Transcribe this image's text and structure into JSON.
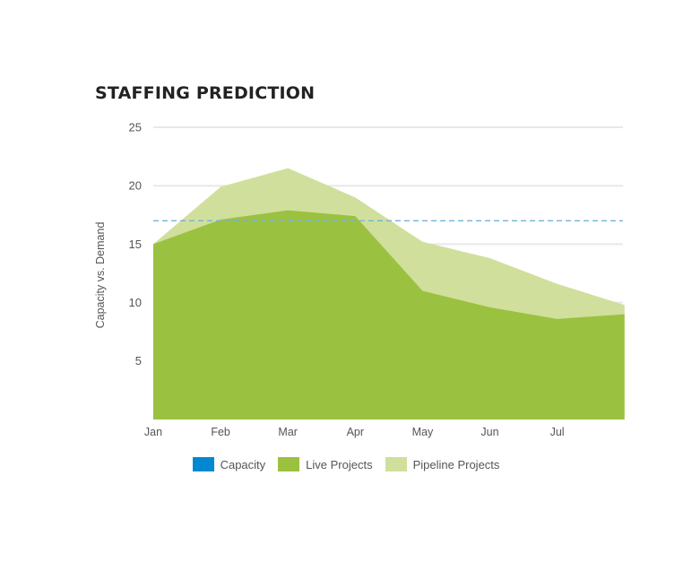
{
  "chart_data": {
    "type": "area",
    "title": "STAFFING PREDICTION",
    "ylabel": "Capacity vs. Demand",
    "xlabel": "",
    "x_ticks": [
      "Jan",
      "Feb",
      "Mar",
      "Apr",
      "May",
      "Jun",
      "Jul"
    ],
    "y_ticks": [
      5,
      10,
      15,
      20,
      25
    ],
    "ylim": [
      0,
      25
    ],
    "grid": true,
    "legend_position": "bottom",
    "series": [
      {
        "name": "Live Projects",
        "color": "#9bc140",
        "x": [
          0,
          1,
          2,
          3,
          4,
          5,
          6,
          7
        ],
        "values": [
          15.0,
          17.1,
          17.9,
          17.4,
          11.0,
          9.6,
          8.6,
          9.0
        ]
      },
      {
        "name": "Pipeline Projects",
        "color": "#d0df9c",
        "x": [
          0,
          1,
          2,
          3,
          4,
          5,
          6,
          7
        ],
        "values": [
          15.0,
          19.9,
          21.5,
          19.0,
          15.2,
          13.8,
          11.6,
          9.8
        ]
      }
    ],
    "capacity": {
      "name": "Capacity",
      "value": 17.0,
      "color": "#0288d1",
      "line_color": "#6fb3dc"
    }
  }
}
